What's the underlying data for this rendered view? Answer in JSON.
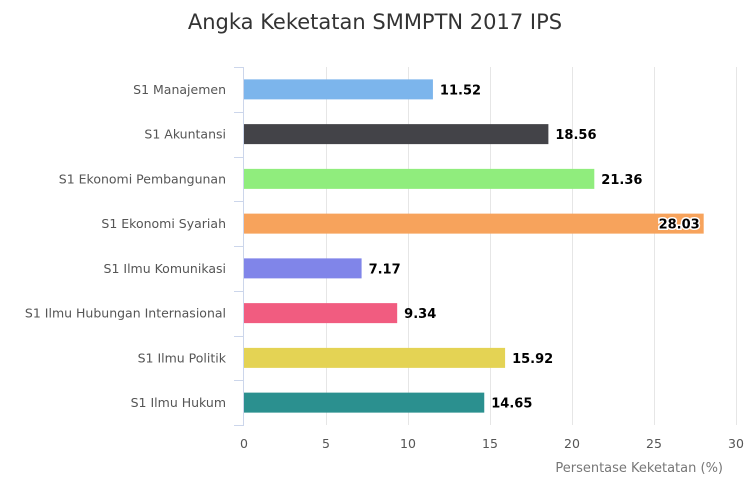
{
  "chart_data": {
    "type": "bar",
    "orientation": "horizontal",
    "title": "Angka Keketatan SMMPTN 2017 IPS",
    "xlabel": "Persentase Keketatan (%)",
    "ylabel": "",
    "xlim": [
      0,
      30
    ],
    "x_ticks": [
      "0",
      "5",
      "10",
      "15",
      "20",
      "25",
      "30"
    ],
    "grid": true,
    "legend": "none",
    "categories": [
      "S1 Manajemen",
      "S1 Akuntansi",
      "S1 Ekonomi Pembangunan",
      "S1 Ekonomi Syariah",
      "S1 Ilmu Komunikasi",
      "S1 Ilmu Hubungan Internasional",
      "S1 Ilmu Politik",
      "S1 Ilmu Hukum"
    ],
    "values": [
      11.52,
      18.56,
      21.36,
      28.03,
      7.17,
      9.34,
      15.92,
      14.65
    ],
    "data_labels": [
      "11.52",
      "18.56",
      "21.36",
      "28.03",
      "7.17",
      "9.34",
      "15.92",
      "14.65"
    ],
    "colors": [
      "#7cb5ec",
      "#434348",
      "#90ed7d",
      "#f7a35c",
      "#8085e9",
      "#f15c80",
      "#e4d354",
      "#2b908f"
    ]
  }
}
